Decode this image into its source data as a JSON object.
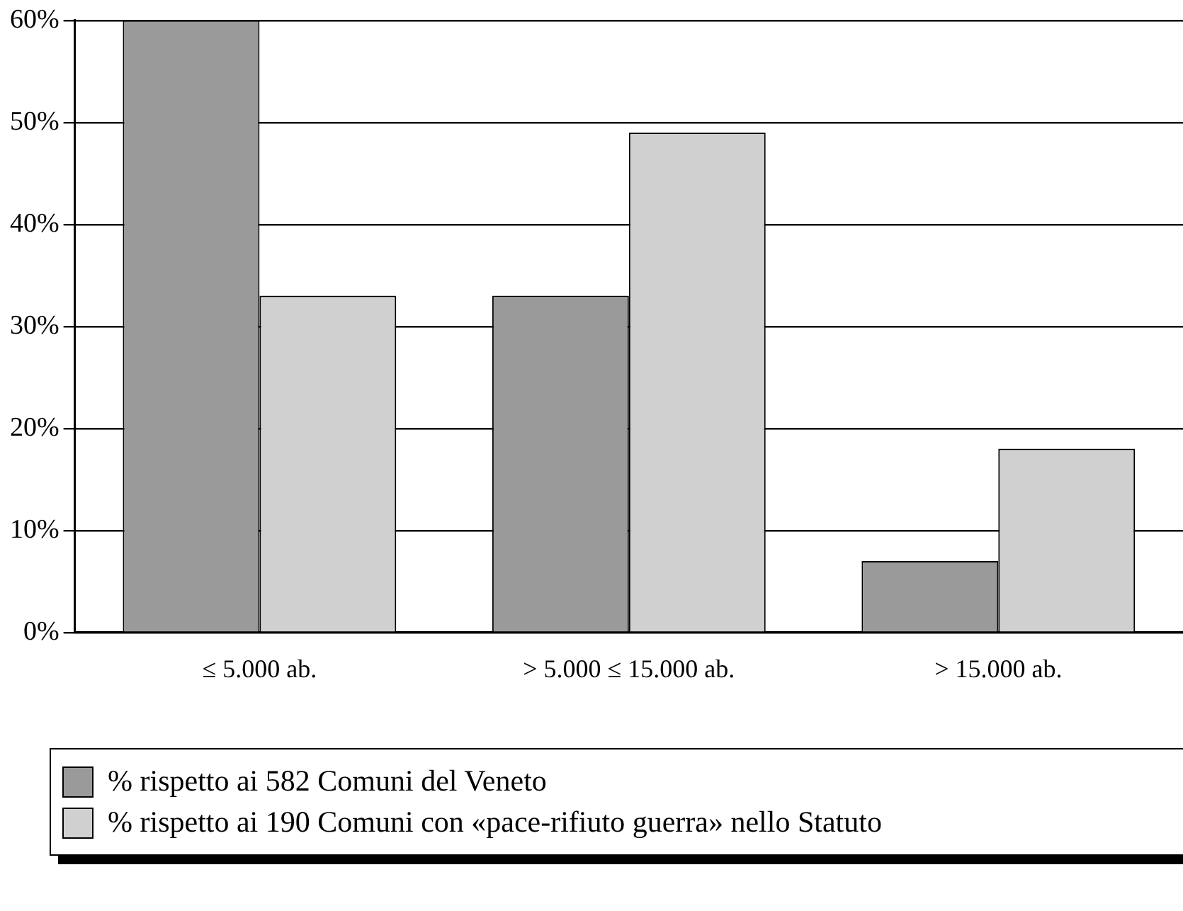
{
  "chart_data": {
    "type": "bar",
    "categories": [
      "≤ 5.000 ab.",
      "> 5.000 ≤ 15.000 ab.",
      "> 15.000 ab."
    ],
    "series": [
      {
        "name": "% rispetto ai 582 Comuni del Veneto",
        "color": "#9a9a9a",
        "values": [
          60,
          33,
          7
        ]
      },
      {
        "name": "% rispetto ai 190 Comuni con «pace-rifiuto guerra» nello Statuto",
        "color": "#d0d0d0",
        "values": [
          33,
          49,
          18
        ]
      }
    ],
    "ylim": [
      0,
      60
    ],
    "yticks": [
      {
        "value": 0,
        "label": "0%"
      },
      {
        "value": 10,
        "label": "10%"
      },
      {
        "value": 20,
        "label": "20%"
      },
      {
        "value": 30,
        "label": "30%"
      },
      {
        "value": 40,
        "label": "40%"
      },
      {
        "value": 50,
        "label": "50%"
      },
      {
        "value": 60,
        "label": "60%"
      }
    ],
    "grid": "y",
    "legend": "bottom"
  }
}
